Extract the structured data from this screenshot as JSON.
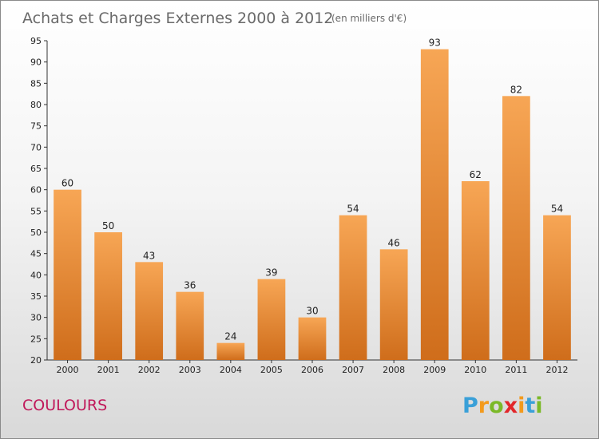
{
  "chart_data": {
    "type": "bar",
    "title": "Achats et Charges Externes 2000 à 2012",
    "subtitle": "(en milliers d'€)",
    "xlabel": "",
    "ylabel": "",
    "categories": [
      "2000",
      "2001",
      "2002",
      "2003",
      "2004",
      "2005",
      "2006",
      "2007",
      "2008",
      "2009",
      "2010",
      "2011",
      "2012"
    ],
    "values": [
      60,
      50,
      43,
      36,
      24,
      39,
      30,
      54,
      46,
      93,
      62,
      82,
      54
    ],
    "ylim": [
      20,
      95
    ],
    "yticks": [
      20,
      25,
      30,
      35,
      40,
      45,
      50,
      55,
      60,
      65,
      70,
      75,
      80,
      85,
      90,
      95
    ],
    "grid": false,
    "legend": "none",
    "bar_color_top": "#f7a655",
    "bar_color_bottom": "#cf6d1b"
  },
  "location": "COULOURS",
  "brand": {
    "letters": [
      "P",
      "r",
      "o",
      "x",
      "i",
      "t",
      "i"
    ],
    "colors": [
      "#3aa0d8",
      "#f39a1c",
      "#7bb928",
      "#e2262a",
      "#f39a1c",
      "#3aa0d8",
      "#7bb928"
    ]
  }
}
